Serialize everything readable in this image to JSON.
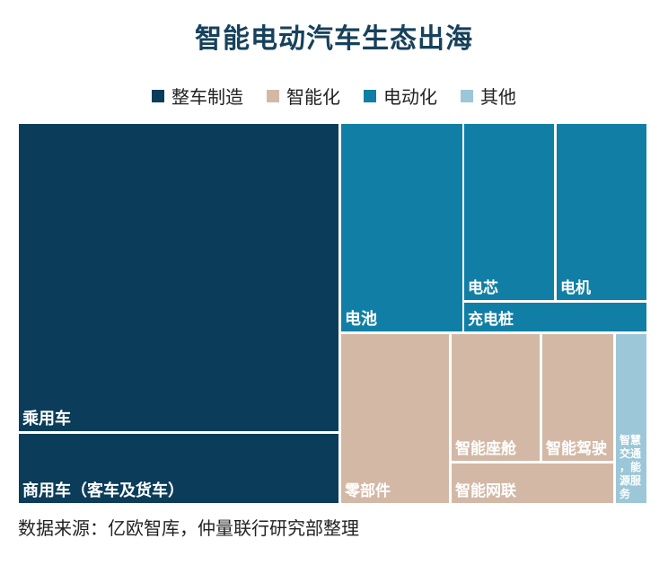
{
  "colors": {
    "整车制造": "#0b3d5a",
    "智能化": "#d3b8a6",
    "电动化": "#117fa5",
    "其他": "#9cc7d8"
  },
  "chart_data": {
    "type": "treemap",
    "title": "智能电动汽车生态出海",
    "legend": [
      "整车制造",
      "智能化",
      "电动化",
      "其他"
    ],
    "legend_placement": "top",
    "cells": [
      {
        "label": "乘用车",
        "group": "整车制造"
      },
      {
        "label": "商用车（客车及货车）",
        "group": "整车制造"
      },
      {
        "label": "电池",
        "group": "电动化"
      },
      {
        "label": "电芯",
        "group": "电动化"
      },
      {
        "label": "电机",
        "group": "电动化"
      },
      {
        "label": "充电桩",
        "group": "电动化"
      },
      {
        "label": "零部件",
        "group": "智能化"
      },
      {
        "label": "智能座舱",
        "group": "智能化"
      },
      {
        "label": "智能驾驶",
        "group": "智能化"
      },
      {
        "label": "智能网联",
        "group": "智能化"
      },
      {
        "label": "智慧交通，能源服务",
        "group": "其他"
      }
    ]
  },
  "source": "数据来源：亿欧智库，仲量联行研究部整理"
}
